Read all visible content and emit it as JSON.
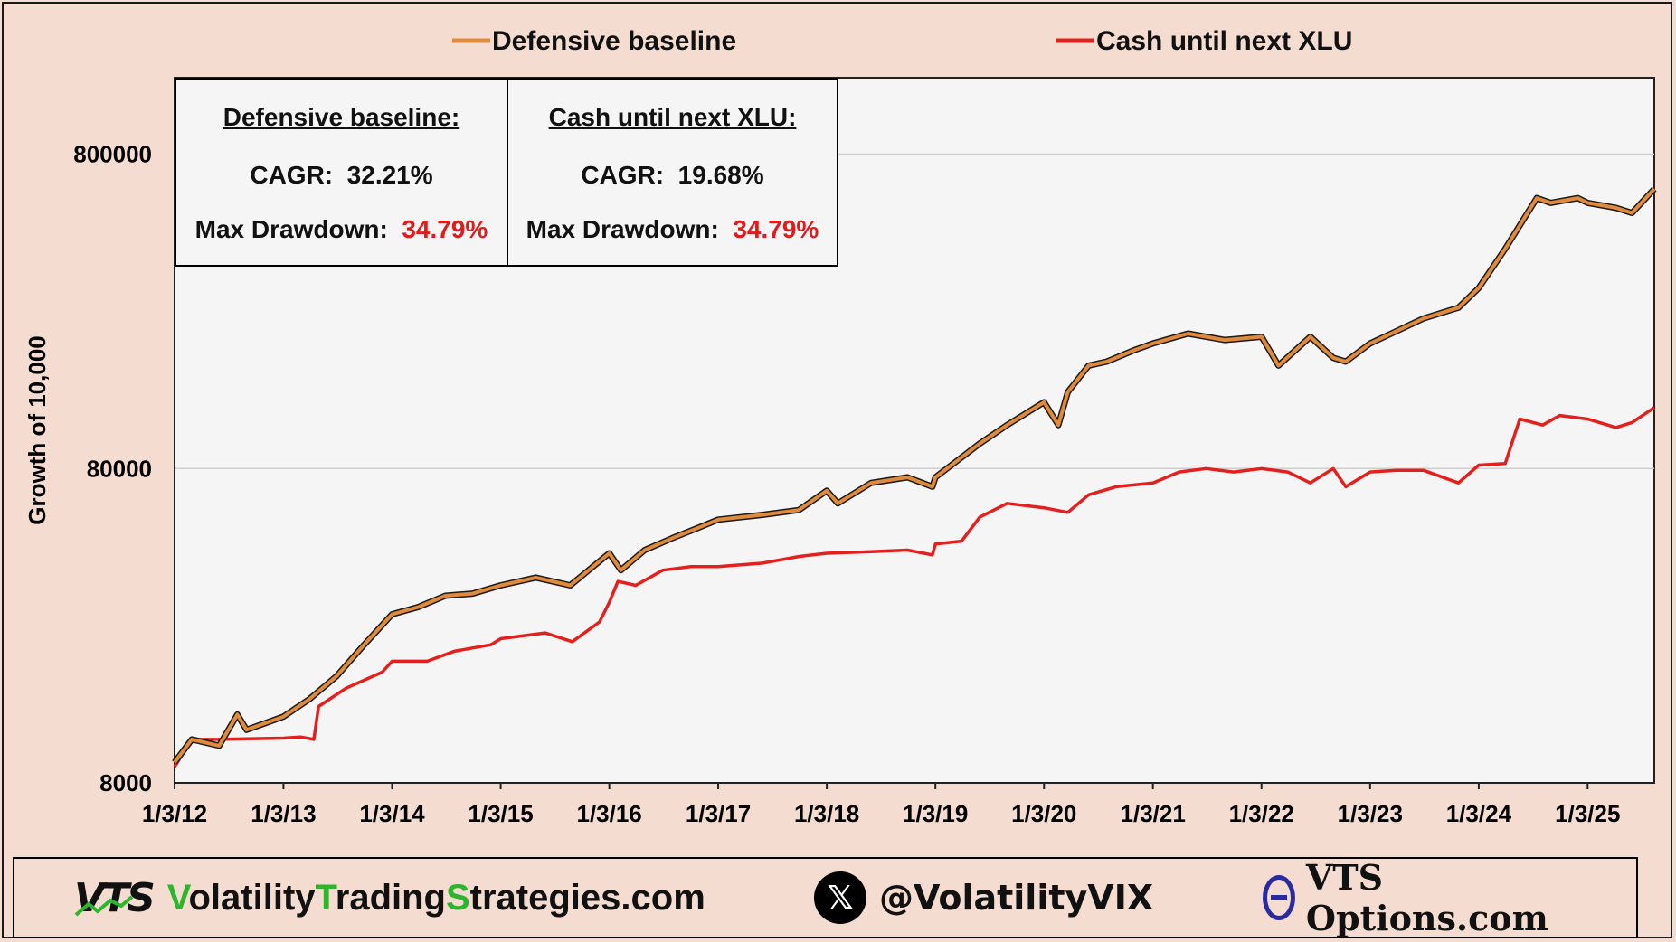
{
  "chart_data": {
    "type": "line",
    "title": "",
    "xlabel": "",
    "ylabel": "Growth of 10,000",
    "y_scale": "log",
    "ylim": [
      8000,
      1400000
    ],
    "y_ticks": [
      8000,
      80000,
      800000
    ],
    "x_ticks": [
      "1/3/12",
      "1/3/13",
      "1/3/14",
      "1/3/15",
      "1/3/16",
      "1/3/17",
      "1/3/18",
      "1/3/19",
      "1/3/20",
      "1/3/21",
      "1/3/22",
      "1/3/23",
      "1/3/24",
      "1/3/25"
    ],
    "xlim": [
      "2012-01-03",
      "2025-08-15"
    ],
    "grid": "horizontal",
    "legend_position": "top",
    "series": [
      {
        "name": "Defensive baseline",
        "color": "#e08a3c",
        "outline": "#1a1a1a",
        "x": [
          "2012-01-03",
          "2012-03-01",
          "2012-06-01",
          "2012-08-01",
          "2012-09-01",
          "2013-01-03",
          "2013-04-01",
          "2013-07-01",
          "2013-10-01",
          "2014-01-03",
          "2014-04-01",
          "2014-07-01",
          "2014-10-01",
          "2015-01-03",
          "2015-05-01",
          "2015-08-25",
          "2016-01-03",
          "2016-02-11",
          "2016-05-01",
          "2016-08-01",
          "2016-11-01",
          "2017-01-03",
          "2017-06-01",
          "2017-10-01",
          "2018-01-03",
          "2018-02-09",
          "2018-06-01",
          "2018-10-01",
          "2018-12-24",
          "2019-01-03",
          "2019-06-01",
          "2019-09-01",
          "2020-01-03",
          "2020-02-20",
          "2020-03-23",
          "2020-06-01",
          "2020-08-01",
          "2020-10-30",
          "2021-01-03",
          "2021-05-01",
          "2021-09-01",
          "2022-01-03",
          "2022-03-01",
          "2022-06-16",
          "2022-09-01",
          "2022-10-13",
          "2023-01-03",
          "2023-03-15",
          "2023-07-01",
          "2023-10-27",
          "2024-01-03",
          "2024-04-01",
          "2024-07-16",
          "2024-09-01",
          "2024-12-01",
          "2025-01-03",
          "2025-04-08",
          "2025-06-01",
          "2025-08-15"
        ],
        "values": [
          9300,
          11000,
          10500,
          13200,
          11800,
          13000,
          14800,
          17500,
          22000,
          27500,
          29000,
          31500,
          32000,
          34000,
          36000,
          34000,
          43000,
          38000,
          44000,
          48000,
          52000,
          55000,
          57000,
          59000,
          68000,
          62000,
          72000,
          75000,
          70000,
          75000,
          96000,
          110000,
          130000,
          110000,
          140000,
          170000,
          175000,
          190000,
          200000,
          215000,
          205000,
          210000,
          170000,
          210000,
          180000,
          175000,
          200000,
          215000,
          240000,
          260000,
          300000,
          400000,
          580000,
          560000,
          580000,
          560000,
          540000,
          520000,
          620000
        ]
      },
      {
        "name": "Cash until next XLU",
        "color": "#e3201d",
        "x": [
          "2012-01-03",
          "2012-03-01",
          "2012-06-01",
          "2013-01-03",
          "2013-03-01",
          "2013-04-15",
          "2013-05-01",
          "2013-08-01",
          "2013-12-01",
          "2014-01-03",
          "2014-05-01",
          "2014-08-01",
          "2014-12-01",
          "2015-01-03",
          "2015-06-01",
          "2015-09-01",
          "2015-12-01",
          "2016-01-03",
          "2016-02-01",
          "2016-04-01",
          "2016-07-01",
          "2016-10-01",
          "2017-01-03",
          "2017-06-01",
          "2017-10-01",
          "2018-01-03",
          "2018-06-01",
          "2018-10-01",
          "2018-12-24",
          "2019-01-03",
          "2019-04-01",
          "2019-06-01",
          "2019-09-01",
          "2020-01-03",
          "2020-03-23",
          "2020-06-01",
          "2020-09-01",
          "2021-01-03",
          "2021-04-01",
          "2021-07-01",
          "2021-10-01",
          "2022-01-03",
          "2022-04-01",
          "2022-06-16",
          "2022-09-01",
          "2022-10-13",
          "2023-01-03",
          "2023-04-01",
          "2023-07-01",
          "2023-10-27",
          "2024-01-03",
          "2024-04-01",
          "2024-05-20",
          "2024-08-05",
          "2024-10-01",
          "2025-01-03",
          "2025-04-08",
          "2025-06-01",
          "2025-08-15"
        ],
        "values": [
          9000,
          11000,
          11000,
          11100,
          11200,
          11000,
          14000,
          16000,
          18000,
          19500,
          19500,
          21000,
          22000,
          23000,
          24000,
          22500,
          26000,
          30000,
          35000,
          34000,
          38000,
          39000,
          39000,
          40000,
          42000,
          43000,
          43500,
          44000,
          42500,
          46000,
          47000,
          56000,
          62000,
          60000,
          58000,
          66000,
          70000,
          72000,
          78000,
          80000,
          78000,
          80000,
          78000,
          72000,
          80000,
          70000,
          78000,
          79000,
          79000,
          72000,
          82000,
          83000,
          115000,
          110000,
          118000,
          115000,
          108000,
          112000,
          125000
        ]
      }
    ],
    "stats": [
      {
        "title": "Defensive baseline:",
        "cagr_label": "CAGR:",
        "cagr": "32.21%",
        "dd_label": "Max Drawdown:",
        "dd": "34.79%"
      },
      {
        "title": "Cash until next XLU:",
        "cagr_label": "CAGR:",
        "cagr": "19.68%",
        "dd_label": "Max Drawdown:",
        "dd": "34.79%"
      }
    ]
  },
  "footer": {
    "logo": "VTS",
    "site_parts": [
      {
        "text": "V",
        "green": true
      },
      {
        "text": "olatility",
        "green": false
      },
      {
        "text": "T",
        "green": true
      },
      {
        "text": "rading",
        "green": false
      },
      {
        "text": "S",
        "green": true
      },
      {
        "text": "trategies.com",
        "green": false
      }
    ],
    "x_glyph": "𝕏",
    "x_icon": "x-logo-icon",
    "handle": "@VolatilityVIX",
    "options_icon": "theta-icon",
    "options_name": "VTS Options.com"
  },
  "colors": {
    "background": "#f4ddd0",
    "plot_background": "#f5f5f5",
    "grid": "#cfcfcf",
    "highlight_red": "#e01b1b",
    "brand_green": "#2db52d"
  }
}
